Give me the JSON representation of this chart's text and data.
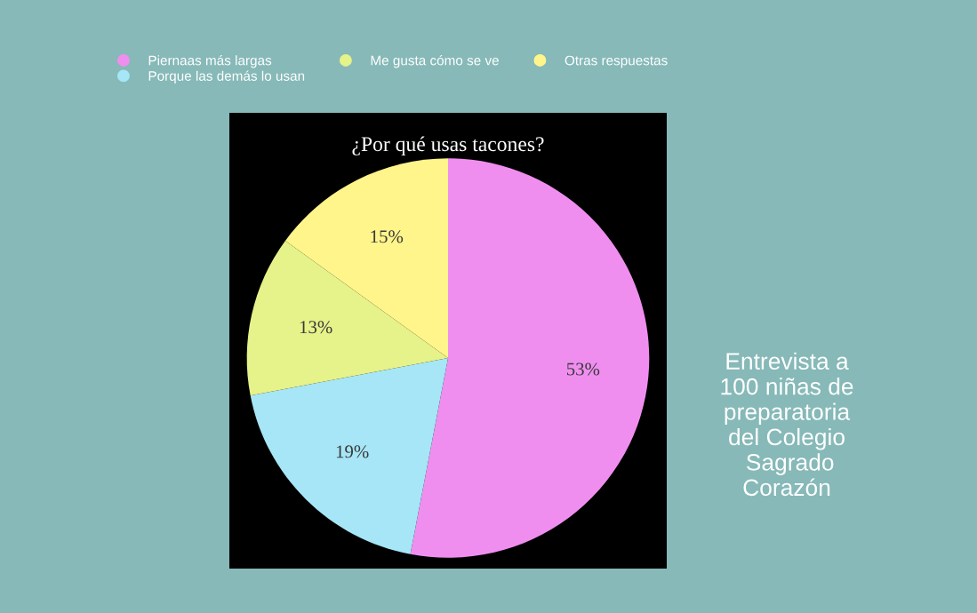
{
  "chart_data": {
    "type": "pie",
    "title": "¿Por qué usas tacones?",
    "categories": [
      "Piernaas más largas",
      "Porque las demás lo usan",
      "Me gusta cómo se ve",
      "Otras respuestas"
    ],
    "values": [
      53,
      19,
      13,
      15
    ],
    "value_labels": [
      "53%",
      "19%",
      "13%",
      "15%"
    ],
    "colors": [
      "#f08ef0",
      "#a6e6f7",
      "#e6f28a",
      "#fff58a"
    ],
    "legend": "top",
    "annotations": [
      "Entrevista a\n100 niñas de\npreparatoria\ndel Colegio\n Sagrado\nCorazón"
    ]
  }
}
